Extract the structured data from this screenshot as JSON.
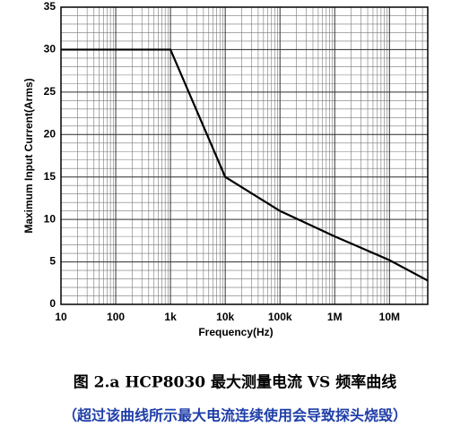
{
  "chart_data": {
    "type": "line",
    "x_label": "Frequency(Hz)",
    "y_label": "Maximum Input Current(Arms)",
    "caption": "图 2.a HCP8030 最大测量电流 VS 频率曲线",
    "note": "（超过该曲线所示最大电流连续使用会导致探头烧毁）",
    "x": [
      10,
      1000,
      10000,
      100000,
      1000000,
      10000000,
      50000000
    ],
    "values": [
      30,
      30,
      15,
      11,
      8,
      5.2,
      2.8
    ],
    "color": "#000000",
    "xscale": "log",
    "grid": true,
    "xlim": [
      10,
      50000000
    ],
    "xticks": [
      10,
      100,
      {
        "value": 1000,
        "label": "1k"
      },
      {
        "value": 10000,
        "label": "10k"
      },
      {
        "value": 100000,
        "label": "100k"
      },
      {
        "value": 1000000,
        "label": "1M"
      },
      {
        "value": 10000000,
        "label": "10M"
      }
    ],
    "ylim": [
      0,
      35
    ],
    "yticks": [
      0,
      5,
      10,
      15,
      20,
      25,
      30,
      35
    ]
  }
}
